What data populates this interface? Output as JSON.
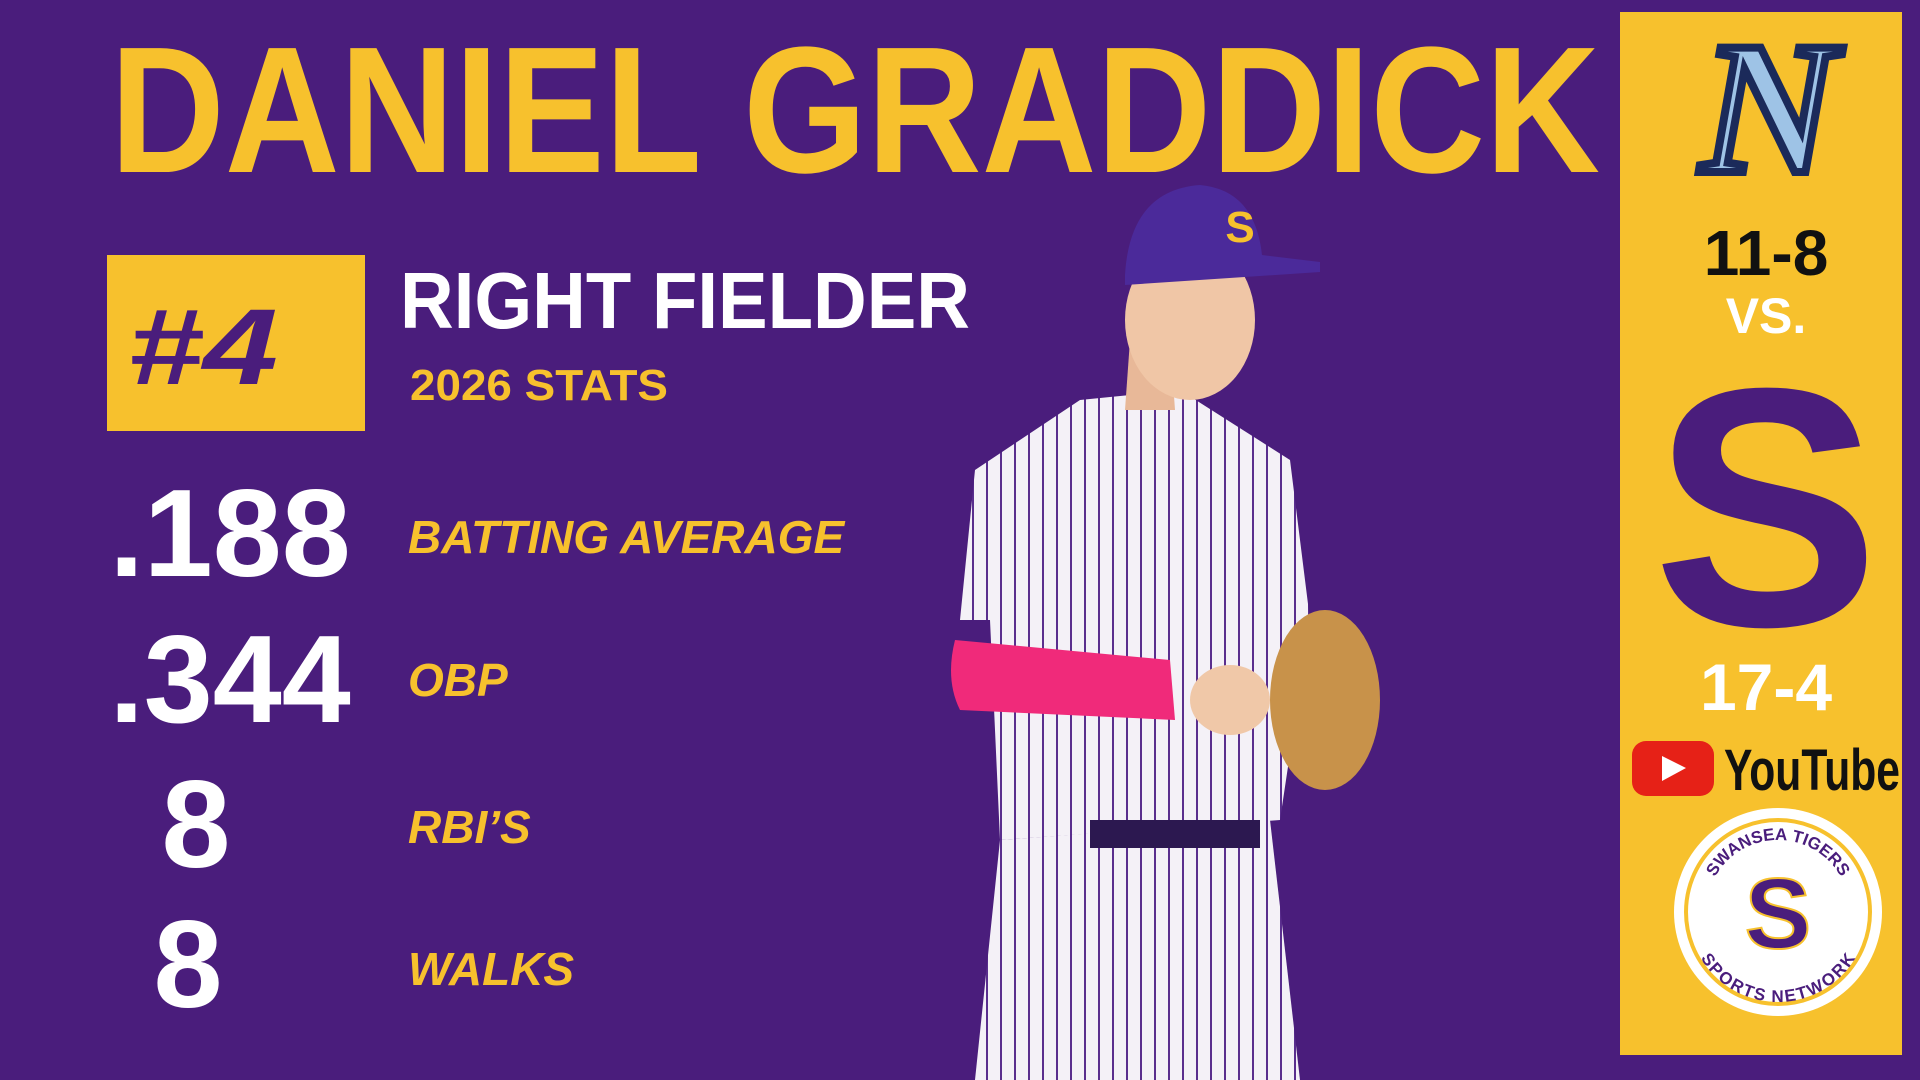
{
  "header": {
    "name": "DANIEL GRADDICK"
  },
  "player": {
    "number": "#4",
    "position": "RIGHT FIELDER",
    "stats_label": "2026 STATS"
  },
  "stats": [
    {
      "value": ".188",
      "label": "BATTING AVERAGE"
    },
    {
      "value": ".344",
      "label": "OBP"
    },
    {
      "value": "8",
      "label": "RBI’S"
    },
    {
      "value": "8",
      "label": "WALKS"
    }
  ],
  "sidebar": {
    "away_logo": "N",
    "away_record": "11-8",
    "vs": "VS.",
    "home_logo": "S",
    "home_record": "17-4",
    "stream": "YouTube",
    "network": {
      "letter": "S",
      "top": "SWANSEA TIGERS",
      "bottom": "SPORTS NETWORK"
    }
  }
}
